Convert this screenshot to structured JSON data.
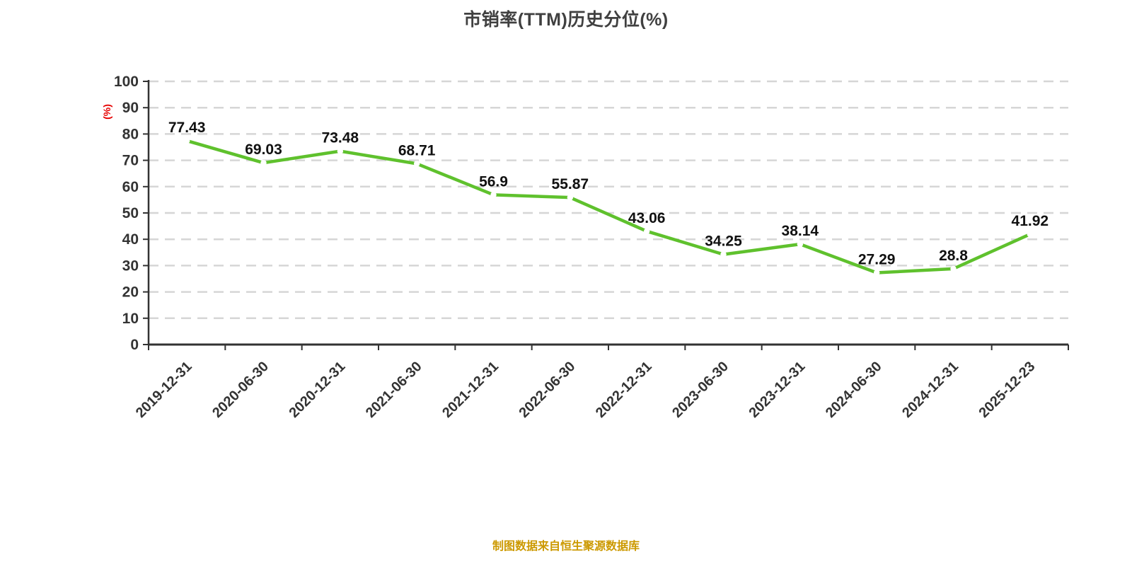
{
  "title": "市销率(TTM)历史分位(%)",
  "footer": "制图数据来自恒生聚源数据库",
  "y_axis_unit": "(%)",
  "colors": {
    "axis": "#333333",
    "grid": "#d6d6d6",
    "line": "#5fc12d",
    "marker": "#ffffff",
    "value_label": "#111111",
    "title": "#404040",
    "footer": "#cc9900",
    "unit_label": "#e60000"
  },
  "chart_data": {
    "type": "line",
    "title": "市销率(TTM)历史分位(%)",
    "xlabel": "",
    "ylabel": "(%)",
    "categories": [
      "2019-12-31",
      "2020-06-30",
      "2020-12-31",
      "2021-06-30",
      "2021-12-31",
      "2022-06-30",
      "2022-12-31",
      "2023-06-30",
      "2023-12-31",
      "2024-06-30",
      "2024-12-31",
      "2025-12-23"
    ],
    "values": [
      77.43,
      69.03,
      73.48,
      68.71,
      56.9,
      55.87,
      43.06,
      34.25,
      38.14,
      27.29,
      28.8,
      41.92
    ],
    "value_labels": [
      "77.43",
      "69.03",
      "73.48",
      "68.71",
      "56.9",
      "55.87",
      "43.06",
      "34.25",
      "38.14",
      "27.29",
      "28.8",
      "41.92"
    ],
    "ylim": [
      0,
      100
    ],
    "ytick_step": 10,
    "grid": "horizontal-dashed",
    "legend_position": "none",
    "line_color": "#5fc12d",
    "marker_style": "white-circle"
  }
}
